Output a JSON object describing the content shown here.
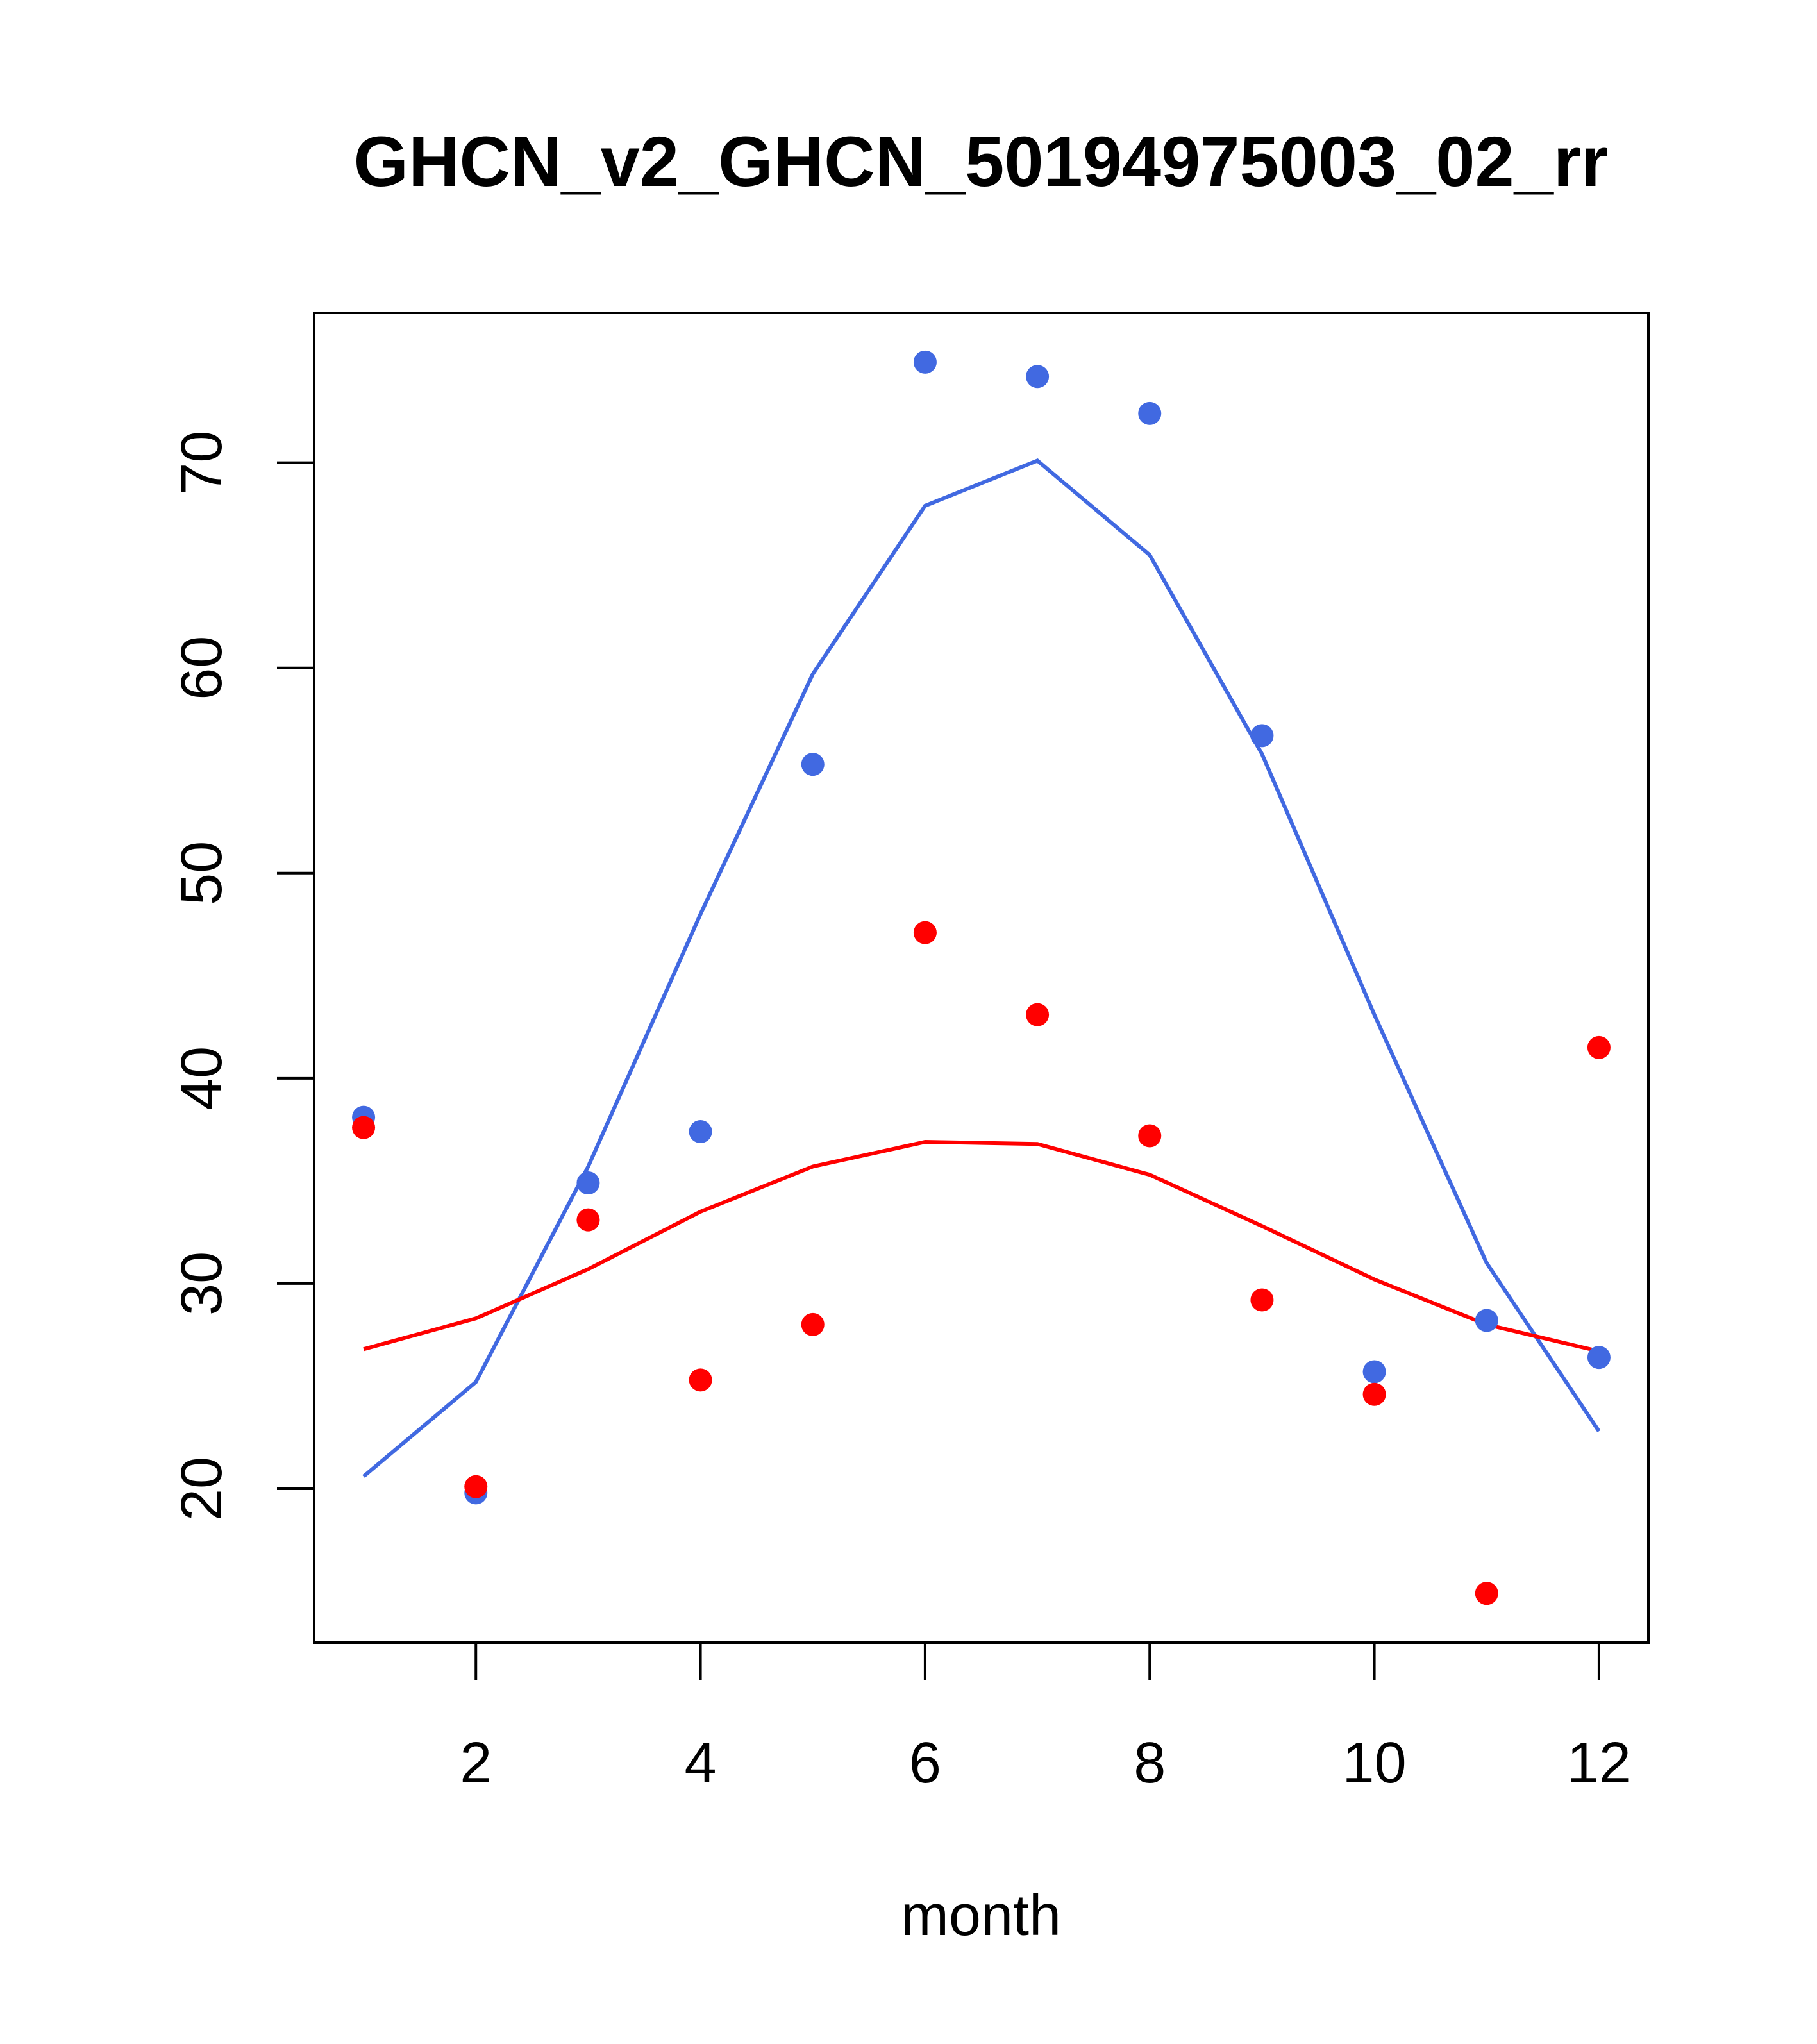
{
  "chart_data": {
    "type": "line",
    "title": "GHCN_v2_GHCN_50194975003_02_rr",
    "xlabel": "month",
    "ylabel": "",
    "xlim": [
      0.56,
      12.44
    ],
    "ylim": [
      12.5,
      77.3
    ],
    "xticks": [
      2,
      4,
      6,
      8,
      10,
      12
    ],
    "yticks": [
      20,
      30,
      40,
      50,
      60,
      70
    ],
    "grid": false,
    "x": [
      1,
      2,
      3,
      4,
      5,
      6,
      7,
      8,
      9,
      10,
      11,
      12
    ],
    "series": [
      {
        "name": "blue points",
        "kind": "points",
        "color": "#4169E1",
        "values": [
          38.1,
          19.8,
          34.9,
          37.4,
          55.3,
          74.9,
          74.2,
          72.4,
          56.7,
          25.7,
          28.2,
          26.4
        ]
      },
      {
        "name": "red points",
        "kind": "points",
        "color": "#FF0000",
        "values": [
          37.6,
          20.1,
          33.1,
          25.3,
          28.0,
          47.1,
          43.1,
          37.2,
          29.2,
          24.6,
          14.9,
          41.5
        ]
      },
      {
        "name": "blue line",
        "kind": "line",
        "color": "#4169E1",
        "values": [
          20.6,
          25.2,
          35.7,
          48.0,
          59.7,
          67.9,
          70.1,
          65.5,
          55.8,
          43.1,
          31.0,
          22.8
        ]
      },
      {
        "name": "red line",
        "kind": "line",
        "color": "#FF0000",
        "values": [
          26.8,
          28.3,
          30.7,
          33.5,
          35.7,
          36.9,
          36.8,
          35.3,
          32.8,
          30.2,
          28.0,
          26.7
        ]
      }
    ]
  }
}
